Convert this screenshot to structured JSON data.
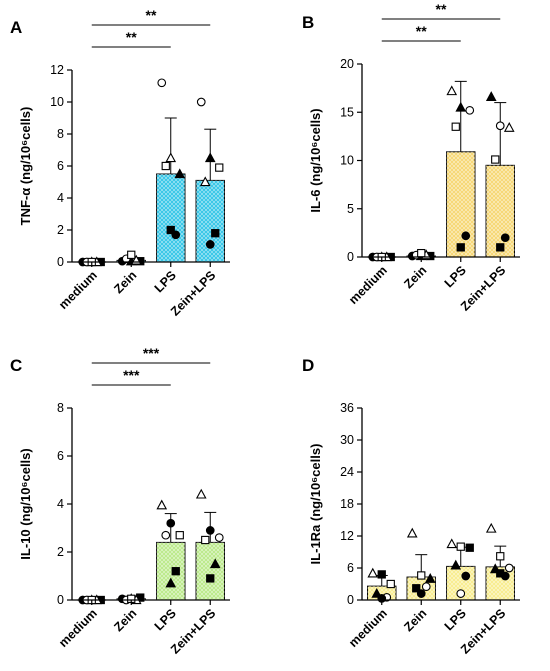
{
  "chart_data": [
    {
      "panel": "A",
      "type": "bar",
      "categories": [
        "medium",
        "Zein",
        "LPS",
        "Zein+LPS"
      ],
      "values": [
        0.0,
        0.1,
        5.5,
        5.1
      ],
      "errors": [
        0.05,
        0.12,
        3.5,
        3.2
      ],
      "ylabel": "TNF-α (ng/10⁶cells)",
      "ylim": [
        0,
        12
      ],
      "yticks": [
        0,
        2,
        4,
        6,
        8,
        10,
        12
      ],
      "bar_color": "#2ec4e6",
      "points": [
        [
          {
            "s": "circle",
            "f": 1,
            "v": 0
          },
          {
            "s": "triangle",
            "f": 1,
            "v": 0
          },
          {
            "s": "square",
            "f": 1,
            "v": 0
          },
          {
            "s": "circle",
            "f": 0,
            "v": 0
          },
          {
            "s": "triangle",
            "f": 0,
            "v": 0
          },
          {
            "s": "square",
            "f": 0,
            "v": 0
          }
        ],
        [
          {
            "s": "circle",
            "f": 1,
            "v": 0.05
          },
          {
            "s": "triangle",
            "f": 1,
            "v": 0.05
          },
          {
            "s": "square",
            "f": 1,
            "v": 0.05
          },
          {
            "s": "circle",
            "f": 0,
            "v": 0.2
          },
          {
            "s": "triangle",
            "f": 0,
            "v": 0.1
          },
          {
            "s": "square",
            "f": 0,
            "v": 0.45
          }
        ],
        [
          {
            "s": "circle",
            "f": 0,
            "v": 11.2
          },
          {
            "s": "triangle",
            "f": 0,
            "v": 6.5
          },
          {
            "s": "triangle",
            "f": 1,
            "v": 5.5
          },
          {
            "s": "square",
            "f": 0,
            "v": 6.0
          },
          {
            "s": "circle",
            "f": 1,
            "v": 1.7
          },
          {
            "s": "square",
            "f": 1,
            "v": 2.0
          }
        ],
        [
          {
            "s": "circle",
            "f": 0,
            "v": 10.0
          },
          {
            "s": "triangle",
            "f": 1,
            "v": 6.5
          },
          {
            "s": "square",
            "f": 0,
            "v": 5.9
          },
          {
            "s": "triangle",
            "f": 0,
            "v": 5.0
          },
          {
            "s": "square",
            "f": 1,
            "v": 1.8
          },
          {
            "s": "circle",
            "f": 1,
            "v": 1.1
          }
        ]
      ],
      "brackets": [
        {
          "from": 0,
          "to": 3,
          "label": "**"
        },
        {
          "from": 0,
          "to": 2,
          "label": "**"
        }
      ]
    },
    {
      "panel": "B",
      "type": "bar",
      "categories": [
        "medium",
        "Zein",
        "LPS",
        "Zein+LPS"
      ],
      "values": [
        0.0,
        0.1,
        10.9,
        9.5
      ],
      "errors": [
        0.05,
        0.15,
        7.3,
        6.5
      ],
      "ylabel": "IL-6 (ng/10⁶cells)",
      "ylim": [
        0,
        20
      ],
      "yticks": [
        0,
        5,
        10,
        15,
        20
      ],
      "bar_color": "#f5d56e",
      "points": [
        [
          {
            "s": "circle",
            "f": 1,
            "v": 0
          },
          {
            "s": "triangle",
            "f": 1,
            "v": 0
          },
          {
            "s": "square",
            "f": 1,
            "v": 0
          },
          {
            "s": "circle",
            "f": 0,
            "v": 0
          },
          {
            "s": "triangle",
            "f": 0,
            "v": 0
          },
          {
            "s": "square",
            "f": 0,
            "v": 0
          }
        ],
        [
          {
            "s": "circle",
            "f": 1,
            "v": 0.1
          },
          {
            "s": "triangle",
            "f": 1,
            "v": 0.1
          },
          {
            "s": "square",
            "f": 1,
            "v": 0.1
          },
          {
            "s": "circle",
            "f": 0,
            "v": 0.2
          },
          {
            "s": "triangle",
            "f": 0,
            "v": 0.2
          },
          {
            "s": "square",
            "f": 0,
            "v": 0.4
          }
        ],
        [
          {
            "s": "triangle",
            "f": 0,
            "v": 17.2
          },
          {
            "s": "triangle",
            "f": 1,
            "v": 15.5
          },
          {
            "s": "circle",
            "f": 0,
            "v": 15.2
          },
          {
            "s": "square",
            "f": 0,
            "v": 13.5
          },
          {
            "s": "circle",
            "f": 1,
            "v": 2.2
          },
          {
            "s": "square",
            "f": 1,
            "v": 1.0
          }
        ],
        [
          {
            "s": "triangle",
            "f": 1,
            "v": 16.6
          },
          {
            "s": "circle",
            "f": 0,
            "v": 13.6
          },
          {
            "s": "triangle",
            "f": 0,
            "v": 13.4
          },
          {
            "s": "square",
            "f": 0,
            "v": 10.1
          },
          {
            "s": "circle",
            "f": 1,
            "v": 2.0
          },
          {
            "s": "square",
            "f": 1,
            "v": 1.0
          }
        ]
      ],
      "brackets": [
        {
          "from": 0,
          "to": 3,
          "label": "**"
        },
        {
          "from": 0,
          "to": 2,
          "label": "**"
        }
      ]
    },
    {
      "panel": "C",
      "type": "bar",
      "categories": [
        "medium",
        "Zein",
        "LPS",
        "Zein+LPS"
      ],
      "values": [
        0.0,
        0.05,
        2.4,
        2.4
      ],
      "errors": [
        0.03,
        0.05,
        1.2,
        1.25
      ],
      "ylabel": "IL-10 (ng/10⁶cells)",
      "ylim": [
        0,
        8
      ],
      "yticks": [
        0,
        2,
        4,
        6,
        8
      ],
      "bar_color": "#b8e986",
      "points": [
        [
          {
            "s": "circle",
            "f": 1,
            "v": 0
          },
          {
            "s": "triangle",
            "f": 1,
            "v": 0
          },
          {
            "s": "square",
            "f": 1,
            "v": 0
          },
          {
            "s": "circle",
            "f": 0,
            "v": 0
          },
          {
            "s": "triangle",
            "f": 0,
            "v": 0
          },
          {
            "s": "square",
            "f": 0,
            "v": 0
          }
        ],
        [
          {
            "s": "circle",
            "f": 1,
            "v": 0.05
          },
          {
            "s": "triangle",
            "f": 1,
            "v": 0.05
          },
          {
            "s": "square",
            "f": 1,
            "v": 0.1
          },
          {
            "s": "circle",
            "f": 0,
            "v": 0
          },
          {
            "s": "triangle",
            "f": 0,
            "v": 0
          },
          {
            "s": "square",
            "f": 0,
            "v": 0.05
          }
        ],
        [
          {
            "s": "triangle",
            "f": 0,
            "v": 3.95
          },
          {
            "s": "circle",
            "f": 1,
            "v": 3.2
          },
          {
            "s": "square",
            "f": 0,
            "v": 2.7
          },
          {
            "s": "circle",
            "f": 0,
            "v": 2.7
          },
          {
            "s": "square",
            "f": 1,
            "v": 1.2
          },
          {
            "s": "triangle",
            "f": 1,
            "v": 0.7
          }
        ],
        [
          {
            "s": "triangle",
            "f": 0,
            "v": 4.4
          },
          {
            "s": "circle",
            "f": 1,
            "v": 2.9
          },
          {
            "s": "circle",
            "f": 0,
            "v": 2.6
          },
          {
            "s": "square",
            "f": 0,
            "v": 2.5
          },
          {
            "s": "triangle",
            "f": 1,
            "v": 1.5
          },
          {
            "s": "square",
            "f": 1,
            "v": 0.9
          }
        ]
      ],
      "brackets": [
        {
          "from": 0,
          "to": 3,
          "label": "***"
        },
        {
          "from": 0,
          "to": 2,
          "label": "***"
        }
      ]
    },
    {
      "panel": "D",
      "type": "bar",
      "categories": [
        "medium",
        "Zein",
        "LPS",
        "Zein+LPS"
      ],
      "values": [
        2.6,
        4.3,
        6.3,
        6.2
      ],
      "errors": [
        2.0,
        4.2,
        3.6,
        3.9
      ],
      "ylabel": "IL-1Ra (ng/10⁶cells)",
      "ylim": [
        0,
        36
      ],
      "yticks": [
        0,
        6,
        12,
        18,
        24,
        30,
        36
      ],
      "bar_color": "#f8ec8a",
      "points": [
        [
          {
            "s": "triangle",
            "f": 0,
            "v": 5.0
          },
          {
            "s": "square",
            "f": 1,
            "v": 4.8
          },
          {
            "s": "square",
            "f": 0,
            "v": 3.0
          },
          {
            "s": "triangle",
            "f": 1,
            "v": 1.2
          },
          {
            "s": "circle",
            "f": 0,
            "v": 0.5
          },
          {
            "s": "circle",
            "f": 1,
            "v": 0.3
          }
        ],
        [
          {
            "s": "triangle",
            "f": 0,
            "v": 12.5
          },
          {
            "s": "square",
            "f": 0,
            "v": 4.6
          },
          {
            "s": "triangle",
            "f": 1,
            "v": 4.0
          },
          {
            "s": "square",
            "f": 1,
            "v": 2.2
          },
          {
            "s": "circle",
            "f": 0,
            "v": 2.5
          },
          {
            "s": "circle",
            "f": 1,
            "v": 1.2
          }
        ],
        [
          {
            "s": "triangle",
            "f": 0,
            "v": 10.5
          },
          {
            "s": "square",
            "f": 0,
            "v": 10.0
          },
          {
            "s": "square",
            "f": 1,
            "v": 9.8
          },
          {
            "s": "triangle",
            "f": 1,
            "v": 6.5
          },
          {
            "s": "circle",
            "f": 1,
            "v": 4.5
          },
          {
            "s": "circle",
            "f": 0,
            "v": 1.2
          }
        ],
        [
          {
            "s": "triangle",
            "f": 0,
            "v": 13.4
          },
          {
            "s": "square",
            "f": 0,
            "v": 8.2
          },
          {
            "s": "circle",
            "f": 0,
            "v": 6.0
          },
          {
            "s": "triangle",
            "f": 1,
            "v": 5.8
          },
          {
            "s": "circle",
            "f": 1,
            "v": 4.5
          },
          {
            "s": "square",
            "f": 1,
            "v": 5.0
          }
        ]
      ],
      "brackets": []
    }
  ]
}
